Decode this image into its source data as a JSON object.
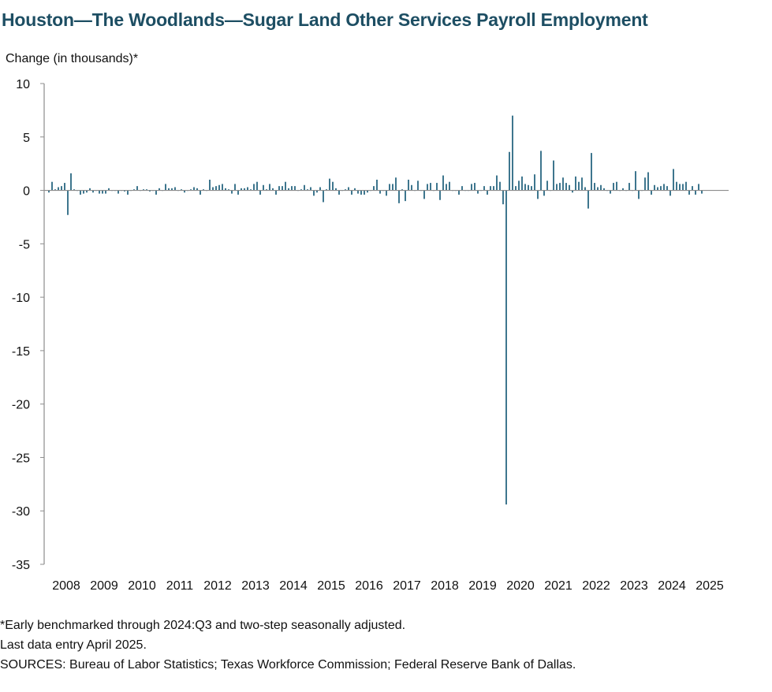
{
  "chart_data": {
    "type": "bar",
    "title": "Houston—The Woodlands—Sugar Land Other Services Payroll Employment",
    "ylabel": "Change (in thousands)*",
    "xlabel": "",
    "ylim": [
      -35,
      10
    ],
    "yticks": [
      10,
      5,
      0,
      -5,
      -10,
      -15,
      -20,
      -25,
      -30,
      -35
    ],
    "ytick_labels": [
      "10",
      "5",
      "0",
      "-5",
      "-10",
      "-15",
      "-20",
      "-25",
      "-30",
      "-35"
    ],
    "x_start": "2008-01",
    "x_end": "2025-04",
    "year_labels": [
      "2008",
      "2009",
      "2010",
      "2011",
      "2012",
      "2013",
      "2014",
      "2015",
      "2016",
      "2017",
      "2018",
      "2019",
      "2020",
      "2021",
      "2022",
      "2023",
      "2024",
      "2025"
    ],
    "bar_color": "#1d5f7a",
    "values": [
      -0.2,
      0.8,
      0.1,
      0.3,
      0.4,
      0.7,
      -2.3,
      1.6,
      0.1,
      0.0,
      -0.4,
      -0.3,
      -0.2,
      0.2,
      -0.2,
      0.0,
      -0.3,
      -0.3,
      -0.3,
      0.2,
      0.0,
      0.0,
      -0.3,
      0.0,
      -0.1,
      -0.4,
      0.0,
      0.1,
      0.4,
      0.0,
      0.1,
      0.1,
      -0.1,
      0.0,
      -0.4,
      0.2,
      0.0,
      0.6,
      0.2,
      0.2,
      0.3,
      0.0,
      0.1,
      -0.2,
      0.0,
      0.1,
      0.3,
      0.2,
      -0.4,
      0.1,
      0.0,
      1.0,
      0.3,
      0.4,
      0.5,
      0.6,
      0.2,
      0.1,
      -0.3,
      0.6,
      -0.4,
      0.2,
      0.2,
      0.3,
      0.1,
      0.6,
      0.8,
      -0.4,
      0.5,
      0.1,
      0.6,
      0.2,
      -0.4,
      0.4,
      0.4,
      0.8,
      0.2,
      0.4,
      0.4,
      0.0,
      0.1,
      0.5,
      0.1,
      0.3,
      -0.5,
      -0.2,
      0.3,
      -1.1,
      0.1,
      1.1,
      0.8,
      0.2,
      -0.4,
      0.0,
      0.1,
      0.3,
      -0.4,
      0.2,
      -0.3,
      -0.4,
      -0.4,
      -0.2,
      0.0,
      0.4,
      1.0,
      -0.3,
      0.0,
      -0.5,
      0.6,
      0.6,
      1.2,
      -1.2,
      0.1,
      -1.0,
      1.0,
      0.5,
      0.0,
      0.9,
      0.0,
      -0.8,
      0.6,
      0.7,
      0.0,
      0.7,
      -0.9,
      1.4,
      0.6,
      0.8,
      0.0,
      0.0,
      -0.4,
      0.4,
      0.0,
      0.0,
      0.6,
      0.7,
      -0.3,
      0.0,
      0.4,
      -0.4,
      0.4,
      0.4,
      1.4,
      0.8,
      -1.3,
      -29.4,
      3.6,
      7.0,
      0.4,
      0.9,
      1.3,
      0.6,
      0.5,
      0.4,
      1.5,
      -0.8,
      3.7,
      -0.5,
      0.9,
      0.0,
      2.8,
      0.6,
      0.7,
      1.2,
      0.7,
      0.5,
      -0.2,
      1.3,
      0.8,
      1.2,
      0.3,
      -1.7,
      3.5,
      0.7,
      0.3,
      0.5,
      0.2,
      0.0,
      -0.3,
      0.7,
      0.8,
      0.0,
      0.2,
      0.0,
      0.7,
      0.0,
      1.8,
      -0.8,
      0.0,
      1.2,
      1.7,
      -0.4,
      0.5,
      0.3,
      0.4,
      0.6,
      0.4,
      -0.5,
      2.0,
      0.8,
      0.6,
      0.6,
      0.8,
      -0.4,
      0.4,
      -0.4,
      0.6,
      -0.3
    ]
  },
  "notes": {
    "line1": "*Early benchmarked through 2024:Q3 and two-step seasonally adjusted.",
    "line2": "Last data entry April 2025.",
    "line3": "SOURCES: Bureau of Labor Statistics; Texas Workforce Commission; Federal Reserve Bank of Dallas."
  }
}
